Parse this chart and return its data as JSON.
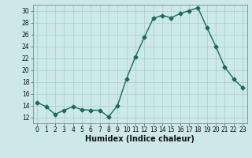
{
  "x": [
    0,
    1,
    2,
    3,
    4,
    5,
    6,
    7,
    8,
    9,
    10,
    11,
    12,
    13,
    14,
    15,
    16,
    17,
    18,
    19,
    20,
    21,
    22,
    23
  ],
  "y": [
    14.5,
    13.8,
    12.5,
    13.2,
    13.8,
    13.3,
    13.2,
    13.2,
    12.1,
    14.0,
    18.5,
    22.2,
    25.5,
    28.7,
    29.2,
    28.8,
    29.5,
    30.0,
    30.5,
    27.2,
    24.0,
    20.5,
    18.5,
    17.0
  ],
  "line_color": "#1a6b5a",
  "marker": "D",
  "marker_size": 2.5,
  "bg_color": "#cce8e8",
  "grid_color": "#aacccc",
  "xlabel": "Humidex (Indice chaleur)",
  "xlim": [
    -0.5,
    23.5
  ],
  "ylim": [
    11,
    31
  ],
  "yticks": [
    12,
    14,
    16,
    18,
    20,
    22,
    24,
    26,
    28,
    30
  ],
  "xticks": [
    0,
    1,
    2,
    3,
    4,
    5,
    6,
    7,
    8,
    9,
    10,
    11,
    12,
    13,
    14,
    15,
    16,
    17,
    18,
    19,
    20,
    21,
    22,
    23
  ],
  "tick_fontsize": 5.5,
  "xlabel_fontsize": 7.0,
  "line_width": 1.0
}
